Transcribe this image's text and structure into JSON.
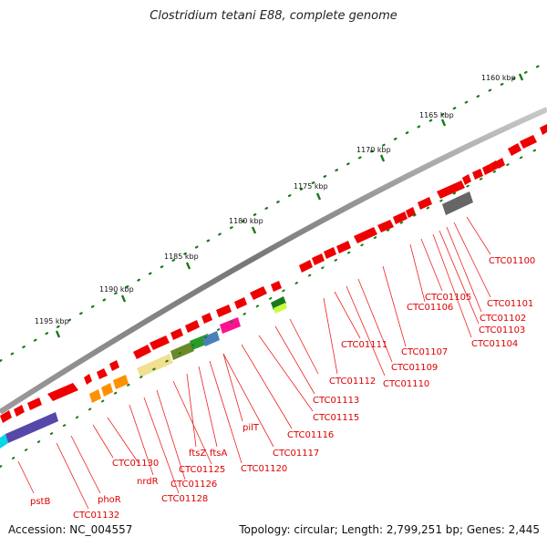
{
  "title": "Clostridium tetani E88, complete genome",
  "footer": {
    "accession": "Accession: NC_004557",
    "summary": "Topology: circular; Length: 2,799,251 bp; Genes: 2,445"
  },
  "scale_labels": [
    "1160 kbp",
    "1165 kbp",
    "1170 kbp",
    "1175 kbp",
    "1180 kbp",
    "1185 kbp",
    "1190 kbp",
    "1195 kbp"
  ],
  "gene_labels": [
    "CTC01100",
    "CTC01101",
    "CTC01102",
    "CTC01103",
    "CTC01104",
    "CTC01105",
    "CTC01106",
    "CTC01107",
    "CTC01109",
    "CTC01110",
    "CTC01111",
    "CTC01112",
    "CTC01113",
    "CTC01115",
    "CTC01116",
    "CTC01117",
    "pilT",
    "CTC01120",
    "ftsZ",
    "ftsA",
    "CTC01125",
    "CTC01126",
    "CTC01128",
    "nrdR",
    "CTC01130",
    "phoR",
    "CTC01132",
    "pstB"
  ],
  "colors": {
    "backbone": "#7a7a7a",
    "gene": "#ee0000",
    "label": "#dd0000",
    "tick": "#1a7a1a",
    "leader": "#ee2222"
  }
}
